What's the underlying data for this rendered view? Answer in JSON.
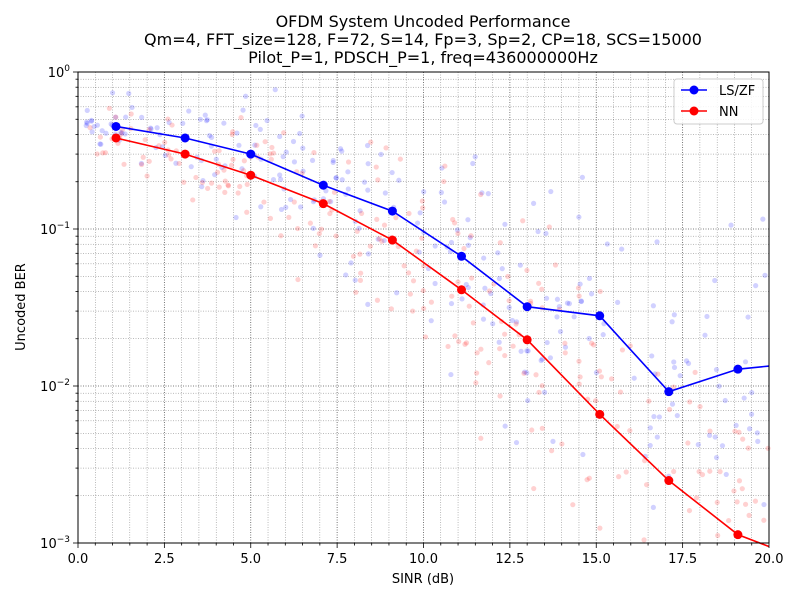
{
  "chart_data": {
    "type": "line",
    "title": [
      "OFDM System Uncoded Performance",
      "Qm=4, FFT_size=128, F=72, S=14, Fp=3, Sp=2, CP=18, SCS=15000",
      "Pilot_P=1, PDSCH_P=1, freq=436000000Hz"
    ],
    "xlabel": "SINR (dB)",
    "ylabel": "Uncoded BER",
    "xlim": [
      0,
      20
    ],
    "ylim": [
      0.001,
      1
    ],
    "yscale": "log",
    "x_ticks": [
      "0.0",
      "2.5",
      "5.0",
      "7.5",
      "10.0",
      "12.5",
      "15.0",
      "17.5",
      "20.0"
    ],
    "y_ticks": [
      {
        "base": "10",
        "exp": "0"
      },
      {
        "base": "10",
        "exp": "−1"
      },
      {
        "base": "10",
        "exp": "−2"
      },
      {
        "base": "10",
        "exp": "−3"
      }
    ],
    "grid": "major and minor, dotted",
    "legend_position": "top-right",
    "series": [
      {
        "name": "LS/ZF",
        "color": "#0000ff",
        "x": [
          1.1,
          3.1,
          5.0,
          7.1,
          9.1,
          11.1,
          13.0,
          15.1,
          17.1,
          19.1,
          20.0
        ],
        "values": [
          0.45,
          0.38,
          0.3,
          0.19,
          0.13,
          0.067,
          0.032,
          0.028,
          0.0092,
          0.0128,
          0.0134
        ]
      },
      {
        "name": "NN",
        "color": "#ff0000",
        "x": [
          1.1,
          3.1,
          5.0,
          7.1,
          9.1,
          11.1,
          13.0,
          15.1,
          17.1,
          19.1,
          20.0
        ],
        "values": [
          0.38,
          0.3,
          0.22,
          0.145,
          0.085,
          0.041,
          0.0197,
          0.0066,
          0.0025,
          0.00113,
          0.00095
        ]
      }
    ],
    "scatter_clouds": [
      {
        "series": "LS/ZF",
        "color": "#0000ff",
        "opacity": 0.18,
        "count": 260,
        "seed": 7
      },
      {
        "series": "NN",
        "color": "#ff0000",
        "opacity": 0.18,
        "count": 260,
        "seed": 13
      }
    ]
  }
}
